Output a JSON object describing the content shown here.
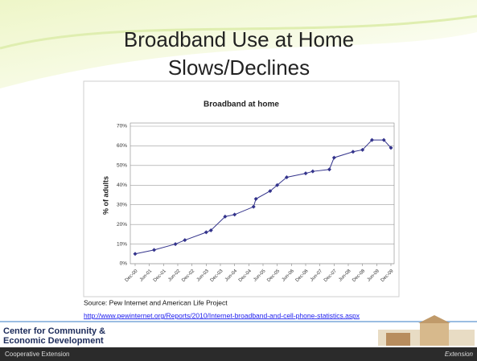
{
  "slide": {
    "title": [
      "Broadband Use at Home",
      "Slows/Declines"
    ],
    "source": "Source: Pew Internet and American Life Project",
    "link": "http://www.pewinternet.org/Reports/2010/Internet-broadband-and-cell-phone-statistics.aspx",
    "org": [
      "Center for Community &",
      "Economic Development"
    ],
    "footer": "Cooperative Extension",
    "footer_right": "Extension"
  },
  "chart_data": {
    "type": "line",
    "title": "Broadband at home",
    "ylabel": "% of adults",
    "x": [
      "2000-12",
      "2001-08",
      "2002-05",
      "2002-09",
      "2003-06",
      "2003-08",
      "2004-02",
      "2004-06",
      "2005-02",
      "2005-03",
      "2005-09",
      "2005-12",
      "2006-04",
      "2006-12",
      "2007-03",
      "2007-10",
      "2007-12",
      "2008-08",
      "2008-12",
      "2009-04",
      "2009-09",
      "2009-12"
    ],
    "values": [
      5,
      7,
      10,
      12,
      16,
      17,
      24,
      25,
      29,
      33,
      37,
      40,
      44,
      46,
      47,
      48,
      54,
      57,
      58,
      63,
      63,
      59
    ],
    "color": "#34348c",
    "xlim": [
      "2000-12",
      "2009-12"
    ],
    "xticks": [
      {
        "value": "2000-12",
        "label": "Dec-00"
      },
      {
        "value": "2001-06",
        "label": "Jun-01"
      },
      {
        "value": "2001-12",
        "label": "Dec-01"
      },
      {
        "value": "2002-06",
        "label": "Jun-02"
      },
      {
        "value": "2002-12",
        "label": "Dec-02"
      },
      {
        "value": "2003-06",
        "label": "Jun-03"
      },
      {
        "value": "2003-12",
        "label": "Dec-03"
      },
      {
        "value": "2004-06",
        "label": "Jun-04"
      },
      {
        "value": "2004-12",
        "label": "Dec-04"
      },
      {
        "value": "2005-06",
        "label": "Jun-05"
      },
      {
        "value": "2005-12",
        "label": "Dec-05"
      },
      {
        "value": "2006-06",
        "label": "Jun-06"
      },
      {
        "value": "2006-12",
        "label": "Dec-06"
      },
      {
        "value": "2007-06",
        "label": "Jun-07"
      },
      {
        "value": "2007-12",
        "label": "Dec-07"
      },
      {
        "value": "2008-06",
        "label": "Jun-08"
      },
      {
        "value": "2008-12",
        "label": "Dec-08"
      },
      {
        "value": "2009-06",
        "label": "Jun-09"
      },
      {
        "value": "2009-12",
        "label": "Dec-09"
      }
    ],
    "ylim": [
      0,
      70
    ],
    "yticks": [
      {
        "value": 0,
        "label": "0%"
      },
      {
        "value": 10,
        "label": "10%"
      },
      {
        "value": 20,
        "label": "20%"
      },
      {
        "value": 30,
        "label": "30%"
      },
      {
        "value": 40,
        "label": "40%"
      },
      {
        "value": 50,
        "label": "50%"
      },
      {
        "value": 60,
        "label": "60%"
      },
      {
        "value": 70,
        "label": "70%"
      }
    ],
    "grid": true
  }
}
